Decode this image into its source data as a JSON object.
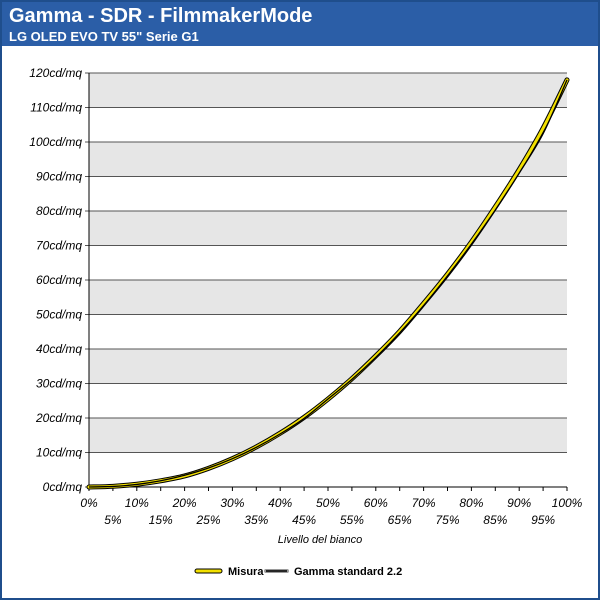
{
  "header": {
    "title": "Gamma - SDR - FilmmakerMode",
    "subtitle": "LG OLED EVO TV 55\" Serie G1"
  },
  "colors": {
    "header_bg": "#2b5ea7",
    "frame": "#1f4e8c",
    "band": "#e6e6e6",
    "measure": "#f2e000",
    "reference": "#000000"
  },
  "chart_data": {
    "type": "line",
    "xlabel": "Livello del bianco",
    "ylabel": "",
    "xlim": [
      0,
      100
    ],
    "ylim": [
      0,
      120
    ],
    "x_tick_labels": [
      "0%",
      "5%",
      "10%",
      "15%",
      "20%",
      "25%",
      "30%",
      "35%",
      "40%",
      "45%",
      "50%",
      "55%",
      "60%",
      "65%",
      "70%",
      "75%",
      "80%",
      "85%",
      "90%",
      "95%",
      "100%"
    ],
    "y_tick_labels": [
      "0cd/mq",
      "10cd/mq",
      "20cd/mq",
      "30cd/mq",
      "40cd/mq",
      "50cd/mq",
      "60cd/mq",
      "70cd/mq",
      "80cd/mq",
      "90cd/mq",
      "100cd/mq",
      "110cd/mq",
      "120cd/mq"
    ],
    "x": [
      0,
      5,
      10,
      15,
      20,
      25,
      30,
      35,
      40,
      45,
      50,
      55,
      60,
      65,
      70,
      75,
      80,
      85,
      90,
      95,
      100
    ],
    "series": [
      {
        "name": "Misura",
        "color": "#f2e000",
        "values": [
          0,
          0.2,
          0.8,
          1.8,
          3.2,
          5.4,
          8.2,
          11.6,
          15.6,
          20.2,
          25.5,
          31.4,
          38.0,
          45.1,
          53.2,
          61.7,
          71.0,
          81.2,
          92.0,
          104.0,
          118.0
        ]
      },
      {
        "name": "Gamma standard 2.2",
        "color": "#000000",
        "values": [
          0,
          0.16,
          0.74,
          1.8,
          3.4,
          5.5,
          8.2,
          11.5,
          15.4,
          19.9,
          25.5,
          31.2,
          37.6,
          44.7,
          52.6,
          61.2,
          70.4,
          80.3,
          91.0,
          102.4,
          118.0
        ]
      }
    ],
    "grid": true,
    "legend_position": "bottom-center"
  }
}
